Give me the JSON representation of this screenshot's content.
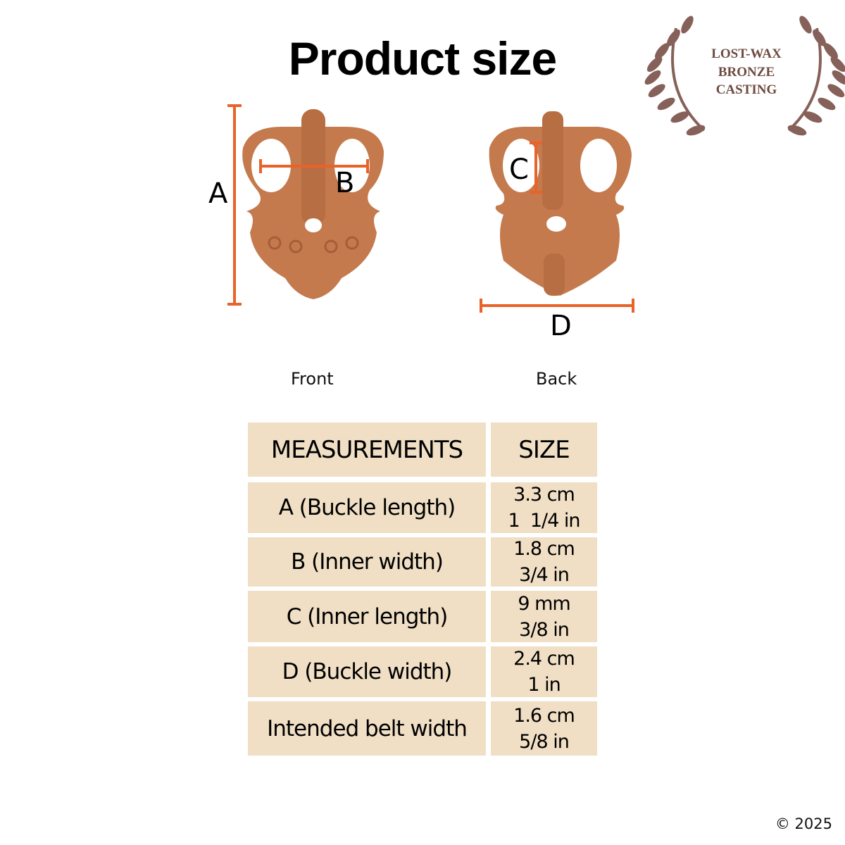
{
  "title": "Product size",
  "logo": {
    "lines": [
      "LOST-WAX",
      "BRONZE",
      "CASTING"
    ]
  },
  "views": {
    "front": "Front",
    "back": "Back"
  },
  "dimension_labels": {
    "a": "A",
    "b": "B",
    "c": "C",
    "d": "D"
  },
  "colors": {
    "dimension_line": "#e8622a",
    "bronze": "#c47a4d",
    "table_bg": "#f0dfc5",
    "logo": "#7a5048"
  },
  "table": {
    "headers": [
      "MEASUREMENTS",
      "SIZE"
    ],
    "rows": [
      {
        "name": "A (Buckle length)",
        "metric": "3.3 cm",
        "imperial": "1  1/4 in"
      },
      {
        "name": "B (Inner width)",
        "metric": "1.8 cm",
        "imperial": "3/4 in"
      },
      {
        "name": "C (Inner length)",
        "metric": "9 mm",
        "imperial": "3/8 in"
      },
      {
        "name": "D (Buckle width)",
        "metric": "2.4 cm",
        "imperial": "1 in"
      },
      {
        "name": "Intended belt width",
        "metric": "1.6 cm",
        "imperial": "5/8 in"
      }
    ]
  },
  "copyright": "© 2025"
}
